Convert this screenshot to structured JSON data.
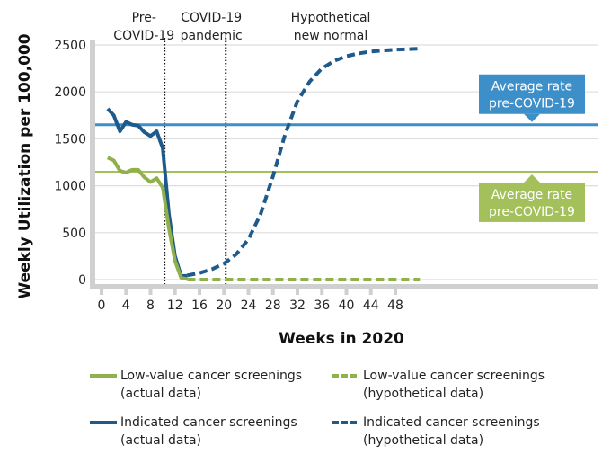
{
  "chart_data": {
    "type": "line",
    "title": "",
    "xlabel": "Weeks in 2020",
    "ylabel": "Weekly Utilization per 100,000",
    "xlim": [
      -1,
      53
    ],
    "ylim": [
      0,
      2500
    ],
    "x_ticks": [
      0,
      4,
      8,
      12,
      16,
      20,
      24,
      28,
      32,
      36,
      40,
      44,
      48
    ],
    "y_ticks": [
      0,
      500,
      1000,
      1500,
      2000,
      2500
    ],
    "grid": "horizontal",
    "phases": [
      {
        "label_lines": [
          "Pre-",
          "COVID-19"
        ],
        "x_start": -1,
        "x_end": 10
      },
      {
        "label_lines": [
          "COVID-19",
          "pandemic"
        ],
        "x_start": 10,
        "x_end": 20
      },
      {
        "label_lines": [
          "Hypothetical",
          "new normal"
        ],
        "x_start": 20,
        "x_end": 53
      }
    ],
    "phase_boundaries": [
      10,
      20
    ],
    "reference_lines": [
      {
        "name": "Indicated average rate pre-COVID-19",
        "value": 1650,
        "color": "#3d8fc9",
        "callout_lines": [
          "Average rate",
          "pre-COVID-19"
        ],
        "callout_position": "above",
        "callout_x": 44
      },
      {
        "name": "Low-value average rate pre-COVID-19",
        "value": 1150,
        "color": "#a3c05a",
        "callout_lines": [
          "Average rate",
          "pre-COVID-19"
        ],
        "callout_position": "below",
        "callout_x": 44
      }
    ],
    "series": [
      {
        "name": "Indicated cancer screenings (actual data)",
        "color": "#1f5a8c",
        "style": "solid",
        "x": [
          1,
          2,
          3,
          4,
          5,
          6,
          7,
          8,
          9,
          10,
          11,
          12,
          13,
          14
        ],
        "y": [
          1820,
          1750,
          1580,
          1680,
          1650,
          1640,
          1570,
          1530,
          1580,
          1400,
          700,
          250,
          40,
          40
        ]
      },
      {
        "name": "Low-value cancer screenings (actual data)",
        "color": "#8fb04a",
        "style": "solid",
        "x": [
          1,
          2,
          3,
          4,
          5,
          6,
          7,
          8,
          9,
          10,
          11,
          12,
          13,
          14
        ],
        "y": [
          1300,
          1270,
          1160,
          1140,
          1170,
          1170,
          1090,
          1040,
          1080,
          980,
          550,
          200,
          20,
          5
        ]
      },
      {
        "name": "Indicated cancer screenings (hypothetical data)",
        "color": "#1f5a8c",
        "style": "dashed",
        "x": [
          14,
          16,
          18,
          20,
          22,
          24,
          26,
          28,
          30,
          32,
          34,
          36,
          38,
          40,
          42,
          44,
          46,
          48,
          50,
          52
        ],
        "y": [
          45,
          70,
          110,
          170,
          270,
          430,
          700,
          1100,
          1550,
          1900,
          2110,
          2250,
          2330,
          2380,
          2410,
          2430,
          2440,
          2450,
          2455,
          2460
        ]
      },
      {
        "name": "Low-value cancer screenings (hypothetical data)",
        "color": "#8fb04a",
        "style": "dashed",
        "x": [
          14,
          52
        ],
        "y": [
          0,
          0
        ]
      }
    ],
    "legend": {
      "placement": "bottom",
      "items": [
        {
          "line1": "Low-value cancer screenings",
          "line2": "(actual data)",
          "color": "#8fb04a",
          "style": "solid"
        },
        {
          "line1": "Low-value cancer screenings",
          "line2": "(hypothetical data)",
          "color": "#8fb04a",
          "style": "dashed"
        },
        {
          "line1": "Indicated cancer screenings",
          "line2": "(actual data)",
          "color": "#1f5a8c",
          "style": "solid"
        },
        {
          "line1": "Indicated cancer screenings",
          "line2": "(hypothetical data)",
          "color": "#1f5a8c",
          "style": "dashed"
        }
      ]
    }
  },
  "colors": {
    "axis": "#cfd0d2",
    "grid": "#dddddd",
    "indicated": "#1f5a8c",
    "indicated_avg": "#3d8fc9",
    "low_value": "#8fb04a",
    "low_value_avg": "#a3c05a"
  }
}
